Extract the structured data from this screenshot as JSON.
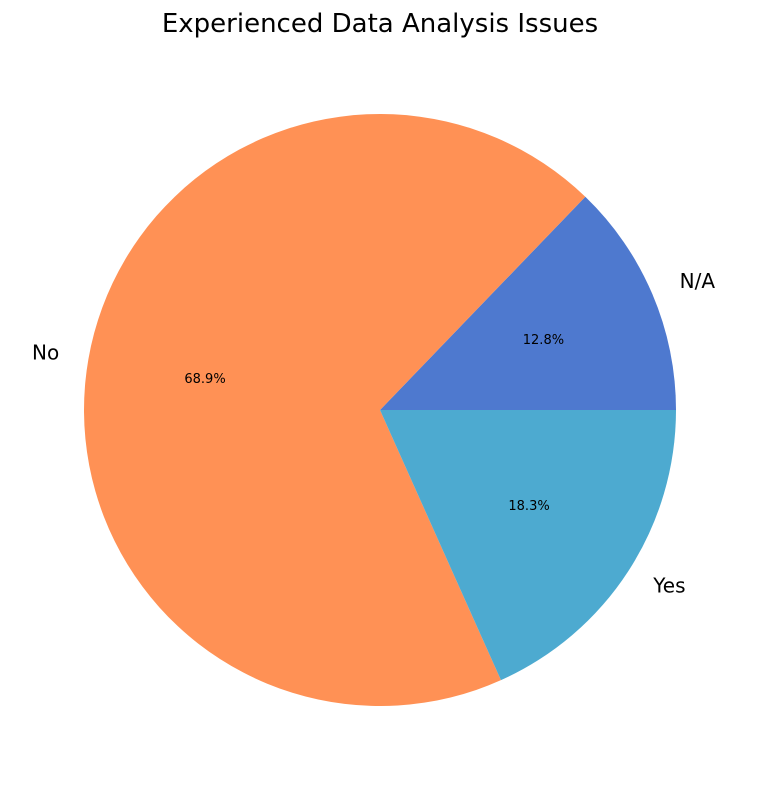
{
  "chart_data": {
    "type": "pie",
    "title": "Experienced Data Analysis Issues",
    "categories": [
      "N/A",
      "No",
      "Yes"
    ],
    "values": [
      12.8,
      68.9,
      18.3
    ],
    "value_labels": [
      "12.8%",
      "68.9%",
      "18.3%"
    ],
    "colors": [
      "#4e79cf",
      "#ff9155",
      "#4daad0"
    ],
    "start_angle_deg": 0,
    "direction": "counterclockwise"
  }
}
